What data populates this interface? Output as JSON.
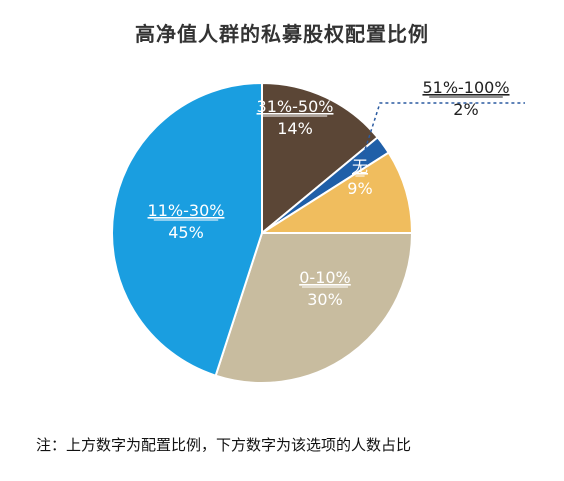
{
  "chart_data": {
    "type": "pie",
    "title": "高净值人群的私募股权配置比例",
    "slices": [
      {
        "label": "31%-50%",
        "value": 14,
        "value_label": "14%",
        "color": "#5b4636",
        "text_color": "#ffffff"
      },
      {
        "label": "51%-100%",
        "value": 2,
        "value_label": "2%",
        "color": "#1f5fa8",
        "text_color": "#222222"
      },
      {
        "label": "无",
        "value": 9,
        "value_label": "9%",
        "color": "#f0bd5e",
        "text_color": "#ffffff"
      },
      {
        "label": "0-10%",
        "value": 30,
        "value_label": "30%",
        "color": "#c8bc9f",
        "text_color": "#ffffff"
      },
      {
        "label": "11%-30%",
        "value": 45,
        "value_label": "45%",
        "color": "#1a9ee0",
        "text_color": "#ffffff"
      }
    ],
    "start_angle_deg": 0,
    "direction": "clockwise"
  },
  "footnote": "注：上方数字为配置比例，下方数字为该选项的人数占比"
}
